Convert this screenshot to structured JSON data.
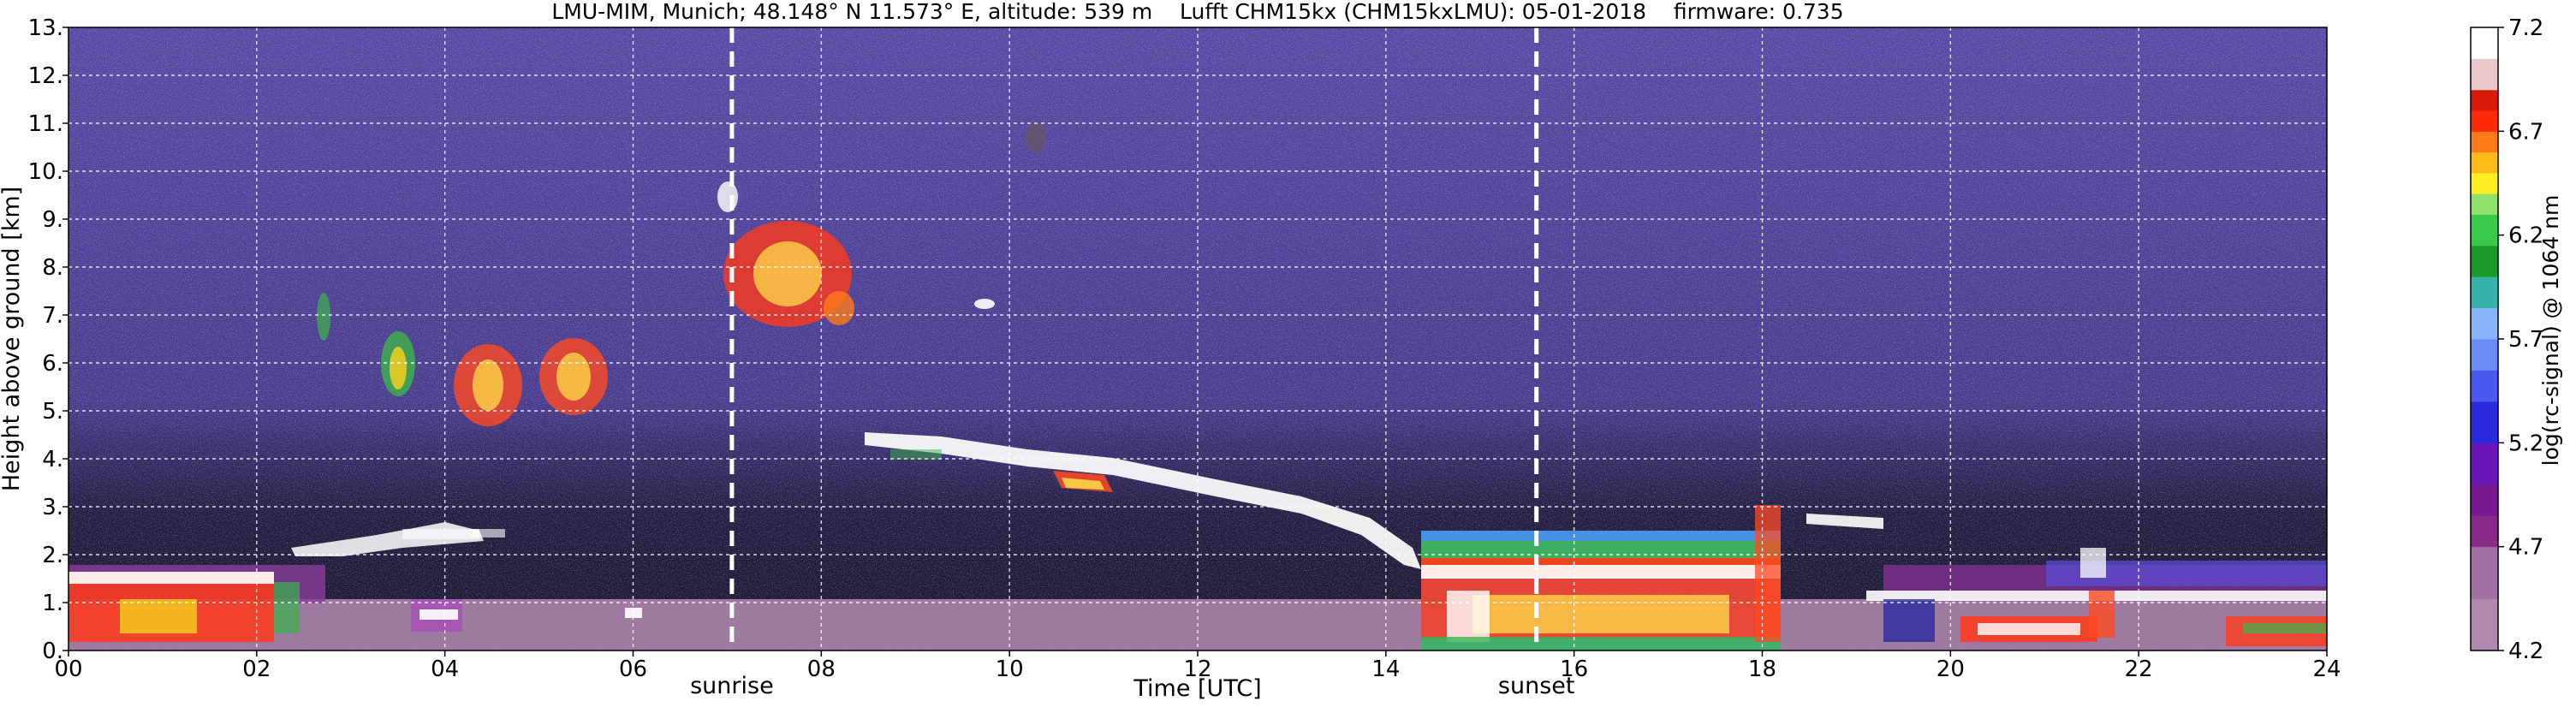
{
  "chart_data": {
    "type": "heatmap",
    "title": "LMU-MIM, Munich; 48.148° N 11.573° E, altitude: 539 m    Lufft CHM15kx (CHM15kxLMU): 05-01-2018    firmware: 0.735",
    "xlabel": "Time [UTC]",
    "ylabel": "Height above ground [km]",
    "xlim": [
      0,
      24
    ],
    "ylim": [
      0,
      13
    ],
    "x_ticks": [
      "00",
      "02",
      "04",
      "06",
      "08",
      "10",
      "12",
      "14",
      "16",
      "18",
      "20",
      "22",
      "24"
    ],
    "y_ticks": [
      "0.",
      "1.",
      "2.",
      "3.",
      "4.",
      "5.",
      "6.",
      "7.",
      "8.",
      "9.",
      "10.",
      "11.",
      "12.",
      "13."
    ],
    "grid": true,
    "markers": [
      {
        "label": "sunrise",
        "x": 7.05
      },
      {
        "label": "sunset",
        "x": 15.6
      }
    ],
    "colorbar": {
      "label": "log(rc-signal) @ 1064 nm",
      "min": 4.2,
      "max": 7.2,
      "ticks": [
        "4.2",
        "4.7",
        "5.2",
        "5.7",
        "6.2",
        "6.7",
        "7.2"
      ]
    },
    "colors": {
      "background": "#4a3d8e",
      "boundary_layer": "#a77fa6"
    }
  }
}
